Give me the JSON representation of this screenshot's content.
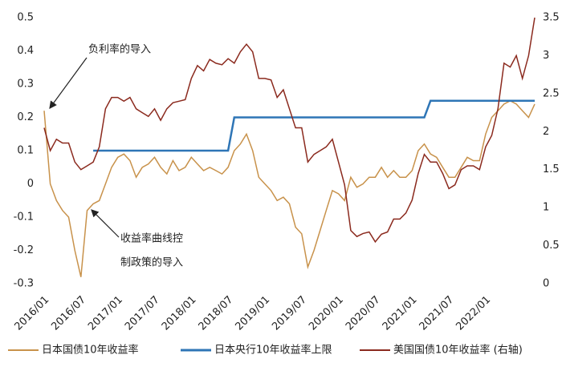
{
  "chart_data": {
    "type": "line",
    "x": [
      "2016/01",
      "2016/02",
      "2016/03",
      "2016/04",
      "2016/05",
      "2016/06",
      "2016/07",
      "2016/08",
      "2016/09",
      "2016/10",
      "2016/11",
      "2016/12",
      "2017/01",
      "2017/02",
      "2017/03",
      "2017/04",
      "2017/05",
      "2017/06",
      "2017/07",
      "2017/08",
      "2017/09",
      "2017/10",
      "2017/11",
      "2017/12",
      "2018/01",
      "2018/02",
      "2018/03",
      "2018/04",
      "2018/05",
      "2018/06",
      "2018/07",
      "2018/08",
      "2018/09",
      "2018/10",
      "2018/11",
      "2018/12",
      "2019/01",
      "2019/02",
      "2019/03",
      "2019/04",
      "2019/05",
      "2019/06",
      "2019/07",
      "2019/08",
      "2019/09",
      "2019/10",
      "2019/11",
      "2019/12",
      "2020/01",
      "2020/02",
      "2020/03",
      "2020/04",
      "2020/05",
      "2020/06",
      "2020/07",
      "2020/08",
      "2020/09",
      "2020/10",
      "2020/11",
      "2020/12",
      "2021/01",
      "2021/02",
      "2021/03",
      "2021/04",
      "2021/05",
      "2021/06",
      "2021/07",
      "2021/08",
      "2021/09",
      "2021/10",
      "2021/11",
      "2021/12",
      "2022/01",
      "2022/02",
      "2022/03",
      "2022/04",
      "2022/05",
      "2022/06",
      "2022/07",
      "2022/08",
      "2022/09"
    ],
    "xticks": [
      "2016/01",
      "2016/07",
      "2017/01",
      "2017/07",
      "2018/01",
      "2018/07",
      "2019/01",
      "2019/07",
      "2020/01",
      "2020/07",
      "2021/01",
      "2021/07",
      "2022/01"
    ],
    "ylim": [
      -0.3,
      0.5
    ],
    "yticks": [
      0.5,
      0.4,
      0.3,
      0.2,
      0.1,
      0,
      -0.1,
      -0.2,
      -0.3
    ],
    "y2lim": [
      0,
      3.5
    ],
    "y2ticks": [
      3.5,
      3,
      2.5,
      2,
      1.5,
      1,
      0.5,
      0
    ],
    "grid": false,
    "series": [
      {
        "name": "日本国债10年收益率",
        "color": "#c8924b",
        "axis": "y",
        "values": [
          0.22,
          0.0,
          -0.05,
          -0.08,
          -0.1,
          -0.2,
          -0.28,
          -0.08,
          -0.06,
          -0.05,
          0.0,
          0.05,
          0.08,
          0.09,
          0.07,
          0.02,
          0.05,
          0.06,
          0.08,
          0.05,
          0.03,
          0.07,
          0.04,
          0.05,
          0.08,
          0.06,
          0.04,
          0.05,
          0.04,
          0.03,
          0.05,
          0.1,
          0.12,
          0.15,
          0.1,
          0.02,
          0.0,
          -0.02,
          -0.05,
          -0.04,
          -0.06,
          -0.13,
          -0.15,
          -0.25,
          -0.2,
          -0.14,
          -0.08,
          -0.02,
          -0.03,
          -0.05,
          0.02,
          -0.01,
          0.0,
          0.02,
          0.02,
          0.05,
          0.02,
          0.04,
          0.02,
          0.02,
          0.04,
          0.1,
          0.12,
          0.09,
          0.08,
          0.05,
          0.02,
          0.02,
          0.05,
          0.08,
          0.07,
          0.07,
          0.15,
          0.2,
          0.22,
          0.24,
          0.25,
          0.24,
          0.22,
          0.2,
          0.24
        ]
      },
      {
        "name": "日本央行10年收益率上限",
        "color": "#2e75b6",
        "axis": "y",
        "values": [
          null,
          null,
          null,
          null,
          null,
          null,
          null,
          null,
          0.1,
          0.1,
          0.1,
          0.1,
          0.1,
          0.1,
          0.1,
          0.1,
          0.1,
          0.1,
          0.1,
          0.1,
          0.1,
          0.1,
          0.1,
          0.1,
          0.1,
          0.1,
          0.1,
          0.1,
          0.1,
          0.1,
          0.1,
          0.2,
          0.2,
          0.2,
          0.2,
          0.2,
          0.2,
          0.2,
          0.2,
          0.2,
          0.2,
          0.2,
          0.2,
          0.2,
          0.2,
          0.2,
          0.2,
          0.2,
          0.2,
          0.2,
          0.2,
          0.2,
          0.2,
          0.2,
          0.2,
          0.2,
          0.2,
          0.2,
          0.2,
          0.2,
          0.2,
          0.2,
          0.2,
          0.25,
          0.25,
          0.25,
          0.25,
          0.25,
          0.25,
          0.25,
          0.25,
          0.25,
          0.25,
          0.25,
          0.25,
          0.25,
          0.25,
          0.25,
          0.25,
          0.25,
          0.25
        ]
      },
      {
        "name": "美国国债10年收益率 (右轴)",
        "color": "#8b2a1e",
        "axis": "y2",
        "values": [
          2.05,
          1.75,
          1.9,
          1.85,
          1.85,
          1.6,
          1.5,
          1.55,
          1.6,
          1.8,
          2.3,
          2.45,
          2.45,
          2.4,
          2.45,
          2.3,
          2.25,
          2.2,
          2.3,
          2.15,
          2.3,
          2.38,
          2.4,
          2.42,
          2.7,
          2.87,
          2.8,
          2.95,
          2.9,
          2.88,
          2.96,
          2.9,
          3.05,
          3.15,
          3.05,
          2.7,
          2.7,
          2.68,
          2.45,
          2.55,
          2.3,
          2.05,
          2.05,
          1.6,
          1.7,
          1.75,
          1.8,
          1.9,
          1.6,
          1.3,
          0.7,
          0.62,
          0.66,
          0.68,
          0.55,
          0.65,
          0.68,
          0.85,
          0.85,
          0.93,
          1.1,
          1.45,
          1.7,
          1.6,
          1.6,
          1.45,
          1.25,
          1.3,
          1.5,
          1.55,
          1.55,
          1.5,
          1.8,
          1.95,
          2.3,
          2.9,
          2.85,
          3.0,
          2.7,
          3.0,
          3.5
        ]
      }
    ],
    "annotations": [
      "负利率的导入",
      "收益率曲线控",
      "制政策的导入"
    ]
  }
}
